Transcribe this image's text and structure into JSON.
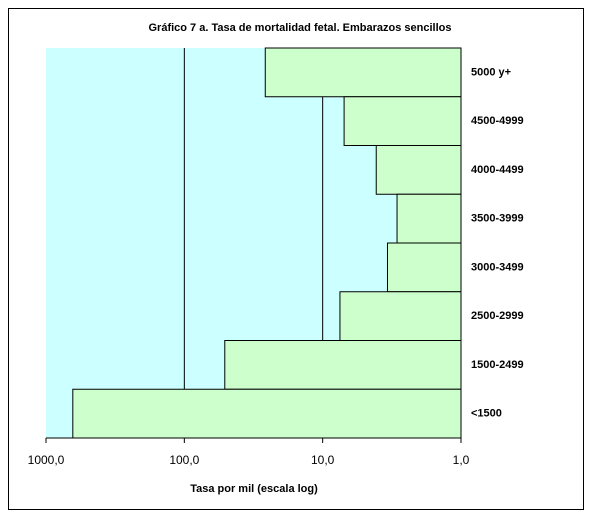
{
  "chart_data": {
    "type": "bar",
    "orientation": "horizontal",
    "title": "Gráfico 7 a. Tasa de mortalidad fetal. Embarazos sencillos",
    "x_label": "Tasa por mil (escala log)",
    "categories": [
      "5000 y+",
      "4500-4999",
      "4000-4499",
      "3500-3999",
      "3000-3499",
      "2500-2999",
      "1500-2499",
      "<1500"
    ],
    "values": [
      26,
      7,
      4.1,
      2.9,
      3.4,
      7.5,
      51,
      640
    ],
    "color": "#ccffcc",
    "plot_background": "#ccffff",
    "xscale": "log",
    "x_reversed": true,
    "xlim": [
      1000,
      1
    ],
    "xticks": [
      {
        "value": 1000,
        "label": "1000,0"
      },
      {
        "value": 100,
        "label": "100,0"
      },
      {
        "value": 10,
        "label": "10,0"
      },
      {
        "value": 1,
        "label": "1,0"
      }
    ],
    "grid": true
  }
}
